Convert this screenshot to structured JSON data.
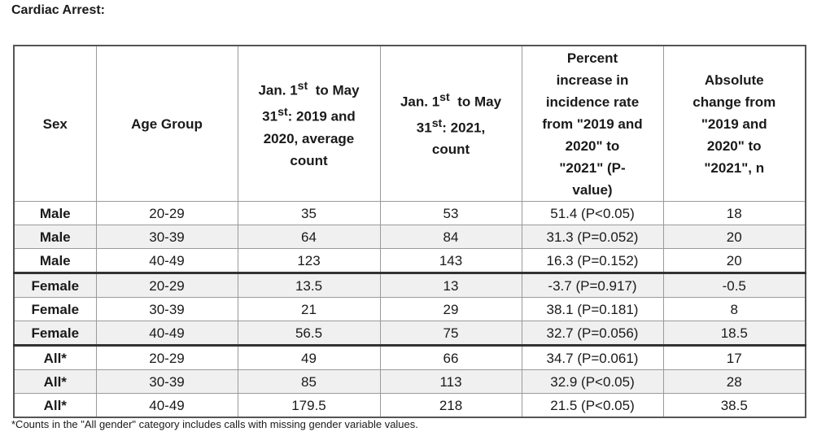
{
  "title": "Cardiac Arrest:",
  "headers": [
    [
      "Sex"
    ],
    [
      "Age Group"
    ],
    [
      "Jan. 1",
      "st",
      "  to May",
      "31",
      "st",
      ": 2019 and",
      "2020, average",
      "count"
    ],
    [
      "Jan. 1",
      "st",
      "  to May",
      "31",
      "st",
      ": 2021,",
      "count"
    ],
    [
      "Percent",
      "increase in",
      "incidence rate",
      "from \"2019 and",
      "2020\" to",
      "\"2021\" (P-",
      "value)"
    ],
    [
      "Absolute",
      "change from",
      "\"2019 and",
      "2020\" to",
      "\"2021\", n"
    ]
  ],
  "rows": [
    {
      "sex": "Male",
      "age": "20-29",
      "avg": "35",
      "count2021": "53",
      "pct": "51.4 (P<0.05)",
      "abs": "18"
    },
    {
      "sex": "Male",
      "age": "30-39",
      "avg": "64",
      "count2021": "84",
      "pct": "31.3 (P=0.052)",
      "abs": "20"
    },
    {
      "sex": "Male",
      "age": "40-49",
      "avg": "123",
      "count2021": "143",
      "pct": "16.3 (P=0.152)",
      "abs": "20"
    },
    {
      "sex": "Female",
      "age": "20-29",
      "avg": "13.5",
      "count2021": "13",
      "pct": "-3.7 (P=0.917)",
      "abs": "-0.5"
    },
    {
      "sex": "Female",
      "age": "30-39",
      "avg": "21",
      "count2021": "29",
      "pct": "38.1 (P=0.181)",
      "abs": "8"
    },
    {
      "sex": "Female",
      "age": "40-49",
      "avg": "56.5",
      "count2021": "75",
      "pct": "32.7 (P=0.056)",
      "abs": "18.5"
    },
    {
      "sex": "All*",
      "age": "20-29",
      "avg": "49",
      "count2021": "66",
      "pct": "34.7 (P=0.061)",
      "abs": "17"
    },
    {
      "sex": "All*",
      "age": "30-39",
      "avg": "85",
      "count2021": "113",
      "pct": "32.9 (P<0.05)",
      "abs": "28"
    },
    {
      "sex": "All*",
      "age": "40-49",
      "avg": "179.5",
      "count2021": "218",
      "pct": "21.5 (P<0.05)",
      "abs": "38.5"
    }
  ],
  "footnote": "*Counts in the \"All gender\" category includes calls with missing gender variable values."
}
